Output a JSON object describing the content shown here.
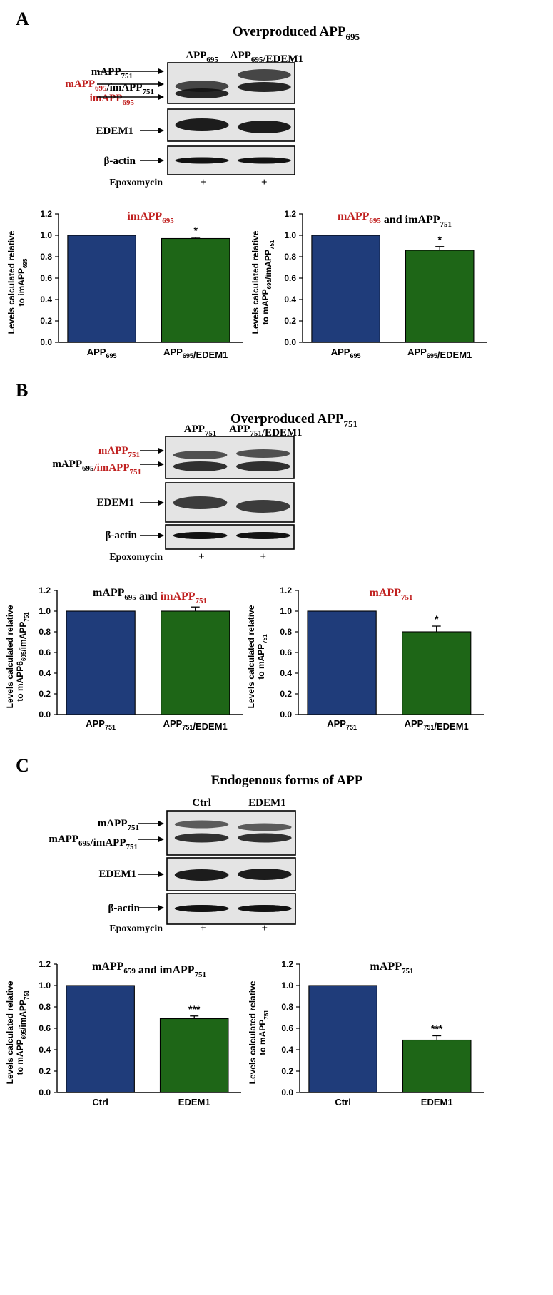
{
  "accent_red": "#c0201f",
  "bar_colors": {
    "blue": "#1f3c7a",
    "green": "#1e6617"
  },
  "panels": [
    {
      "letter": "A",
      "title": {
        "pre": "Overproduced APP",
        "sub": "695"
      },
      "lanes": [
        {
          "pre": "APP",
          "sub": "695",
          "post": ""
        },
        {
          "pre": "APP",
          "sub": "695",
          "post": "/EDEM1"
        }
      ],
      "blot_labels": [
        {
          "segs": [
            {
              "t": "mAPP",
              "s": "751",
              "c": "black"
            }
          ]
        },
        {
          "segs": [
            {
              "t": "mAPP",
              "s": "695",
              "c": "red"
            },
            {
              "t": "/imAPP",
              "s": "751",
              "c": "black"
            }
          ]
        },
        {
          "segs": [
            {
              "t": "imAPP",
              "s": "695",
              "c": "red"
            }
          ]
        },
        {
          "segs": [
            {
              "t": "EDEM1",
              "s": "",
              "c": "black"
            }
          ]
        },
        {
          "segs": [
            {
              "t": "β-actin",
              "s": "",
              "c": "black"
            }
          ]
        }
      ],
      "treatment": {
        "label": "Epoxomycin",
        "marks": [
          "+",
          "+"
        ]
      },
      "charts": [
        {
          "title_segs": [
            {
              "t": "imAPP",
              "s": "695",
              "c": "red"
            }
          ],
          "ylabel": {
            "l1": "Levels calculated relative",
            "l2_pre": "to imAPP",
            "l2_sub": "695"
          },
          "chart_data": {
            "type": "bar",
            "categories": [
              "APP695",
              "APP695/EDEM1"
            ],
            "values": [
              1.0,
              0.97
            ],
            "errors": [
              0,
              0.01
            ],
            "significance": [
              "",
              "*"
            ],
            "ylim": [
              0,
              1.2
            ],
            "yticks": [
              "0.0",
              "0.2",
              "0.4",
              "0.6",
              "0.8",
              "1.0",
              "1.2"
            ]
          },
          "xlabels": [
            {
              "pre": "APP",
              "sub": "695",
              "post": ""
            },
            {
              "pre": "APP",
              "sub": "695",
              "post": "/EDEM1"
            }
          ]
        },
        {
          "title_segs": [
            {
              "t": "mAPP",
              "s": "695",
              "c": "red"
            },
            {
              "t": " and imAPP",
              "s": "751",
              "c": "black"
            }
          ],
          "ylabel": {
            "l1": "Levels calculated relative",
            "l2_pre": "to mAPP",
            "l2_sub": "695",
            "l2_post": "/imAPP",
            "l2_sub2": "751"
          },
          "chart_data": {
            "type": "bar",
            "categories": [
              "APP695",
              "APP695/EDEM1"
            ],
            "values": [
              1.0,
              0.86
            ],
            "errors": [
              0,
              0.035
            ],
            "significance": [
              "",
              "*"
            ],
            "ylim": [
              0,
              1.2
            ],
            "yticks": [
              "0.0",
              "0.2",
              "0.4",
              "0.6",
              "0.8",
              "1.0",
              "1.2"
            ]
          },
          "xlabels": [
            {
              "pre": "APP",
              "sub": "695",
              "post": ""
            },
            {
              "pre": "APP",
              "sub": "695",
              "post": "/EDEM1"
            }
          ]
        }
      ]
    },
    {
      "letter": "B",
      "title": {
        "pre": "Overproduced APP",
        "sub": "751"
      },
      "lanes": [
        {
          "pre": "APP",
          "sub": "751",
          "post": ""
        },
        {
          "pre": "APP",
          "sub": "751",
          "post": "/EDEM1"
        }
      ],
      "blot_labels": [
        {
          "segs": [
            {
              "t": "mAPP",
              "s": "751",
              "c": "red"
            }
          ]
        },
        {
          "segs": [
            {
              "t": "mAPP",
              "s": "695",
              "c": "black"
            },
            {
              "t": "/imAPP",
              "s": "751",
              "c": "red"
            }
          ]
        },
        {
          "segs": [
            {
              "t": "EDEM1",
              "s": "",
              "c": "black"
            }
          ]
        },
        {
          "segs": [
            {
              "t": "β-actin",
              "s": "",
              "c": "black"
            }
          ]
        }
      ],
      "treatment": {
        "label": "Epoxomycin",
        "marks": [
          "+",
          "+"
        ]
      },
      "charts": [
        {
          "title_segs": [
            {
              "t": "mAPP",
              "s": "695",
              "c": "black"
            },
            {
              "t": " and ",
              "s": "",
              "c": "black"
            },
            {
              "t": "imAPP",
              "s": "751",
              "c": "red"
            }
          ],
          "ylabel": {
            "l1": "Levels calculated relative",
            "l2_pre": "to mAPP6",
            "l2_sub": "695",
            "l2_post": "/imAPP",
            "l2_sub2": "751"
          },
          "chart_data": {
            "type": "bar",
            "categories": [
              "APP751",
              "APP751/EDEM1"
            ],
            "values": [
              1.0,
              1.0
            ],
            "errors": [
              0,
              0.04
            ],
            "significance": [
              "",
              ""
            ],
            "ylim": [
              0,
              1.2
            ],
            "yticks": [
              "0.0",
              "0.2",
              "0.4",
              "0.6",
              "0.8",
              "1.0",
              "1.2"
            ]
          },
          "xlabels": [
            {
              "pre": "APP",
              "sub": "751",
              "post": ""
            },
            {
              "pre": "APP",
              "sub": "751",
              "post": "/EDEM1"
            }
          ]
        },
        {
          "title_segs": [
            {
              "t": "mAPP",
              "s": "751",
              "c": "red"
            }
          ],
          "ylabel": {
            "l1": "Levels calculated relative",
            "l2_pre": "to mAPP",
            "l2_sub": "751"
          },
          "chart_data": {
            "type": "bar",
            "categories": [
              "APP751",
              "APP751/EDEM1"
            ],
            "values": [
              1.0,
              0.8
            ],
            "errors": [
              0,
              0.055
            ],
            "significance": [
              "",
              "*"
            ],
            "ylim": [
              0,
              1.2
            ],
            "yticks": [
              "0.0",
              "0.2",
              "0.4",
              "0.6",
              "0.8",
              "1.0",
              "1.2"
            ]
          },
          "xlabels": [
            {
              "pre": "APP",
              "sub": "751",
              "post": ""
            },
            {
              "pre": "APP",
              "sub": "751",
              "post": "/EDEM1"
            }
          ]
        }
      ]
    },
    {
      "letter": "C",
      "title": {
        "pre": "Endogenous forms of APP",
        "sub": ""
      },
      "lanes": [
        {
          "pre": "Ctrl",
          "sub": "",
          "post": ""
        },
        {
          "pre": "EDEM1",
          "sub": "",
          "post": ""
        }
      ],
      "blot_labels": [
        {
          "segs": [
            {
              "t": "mAPP",
              "s": "751",
              "c": "black"
            }
          ]
        },
        {
          "segs": [
            {
              "t": "mAPP",
              "s": "695",
              "c": "black"
            },
            {
              "t": "/imAPP",
              "s": "751",
              "c": "black"
            }
          ]
        },
        {
          "segs": [
            {
              "t": "EDEM1",
              "s": "",
              "c": "black"
            }
          ]
        },
        {
          "segs": [
            {
              "t": "β-actin",
              "s": "",
              "c": "black"
            }
          ]
        }
      ],
      "treatment": {
        "label": "Epoxomycin",
        "marks": [
          "+",
          "+"
        ]
      },
      "charts": [
        {
          "title_segs": [
            {
              "t": "mAPP",
              "s": "659",
              "c": "black"
            },
            {
              "t": " and imAPP",
              "s": "751",
              "c": "black"
            }
          ],
          "ylabel": {
            "l1": "Levels calculated relative",
            "l2_pre": "to mAPP",
            "l2_sub": "695",
            "l2_post": "/imAPP",
            "l2_sub2": "751"
          },
          "chart_data": {
            "type": "bar",
            "categories": [
              "Ctrl",
              "EDEM1"
            ],
            "values": [
              1.0,
              0.69
            ],
            "errors": [
              0,
              0.025
            ],
            "significance": [
              "",
              "***"
            ],
            "ylim": [
              0,
              1.2
            ],
            "yticks": [
              "0.0",
              "0.2",
              "0.4",
              "0.6",
              "0.8",
              "1.0",
              "1.2"
            ]
          },
          "xlabels": [
            {
              "pre": "Ctrl",
              "sub": "",
              "post": ""
            },
            {
              "pre": "EDEM1",
              "sub": "",
              "post": ""
            }
          ]
        },
        {
          "title_segs": [
            {
              "t": "mAPP",
              "s": "751",
              "c": "black"
            }
          ],
          "ylabel": {
            "l1": "Levels calculated relative",
            "l2_pre": "to mAPP",
            "l2_sub": "751"
          },
          "chart_data": {
            "type": "bar",
            "categories": [
              "Ctrl",
              "EDEM1"
            ],
            "values": [
              1.0,
              0.49
            ],
            "errors": [
              0,
              0.04
            ],
            "significance": [
              "",
              "***"
            ],
            "ylim": [
              0,
              1.2
            ],
            "yticks": [
              "0.0",
              "0.2",
              "0.4",
              "0.6",
              "0.8",
              "1.0",
              "1.2"
            ]
          },
          "xlabels": [
            {
              "pre": "Ctrl",
              "sub": "",
              "post": ""
            },
            {
              "pre": "EDEM1",
              "sub": "",
              "post": ""
            }
          ]
        }
      ]
    }
  ]
}
